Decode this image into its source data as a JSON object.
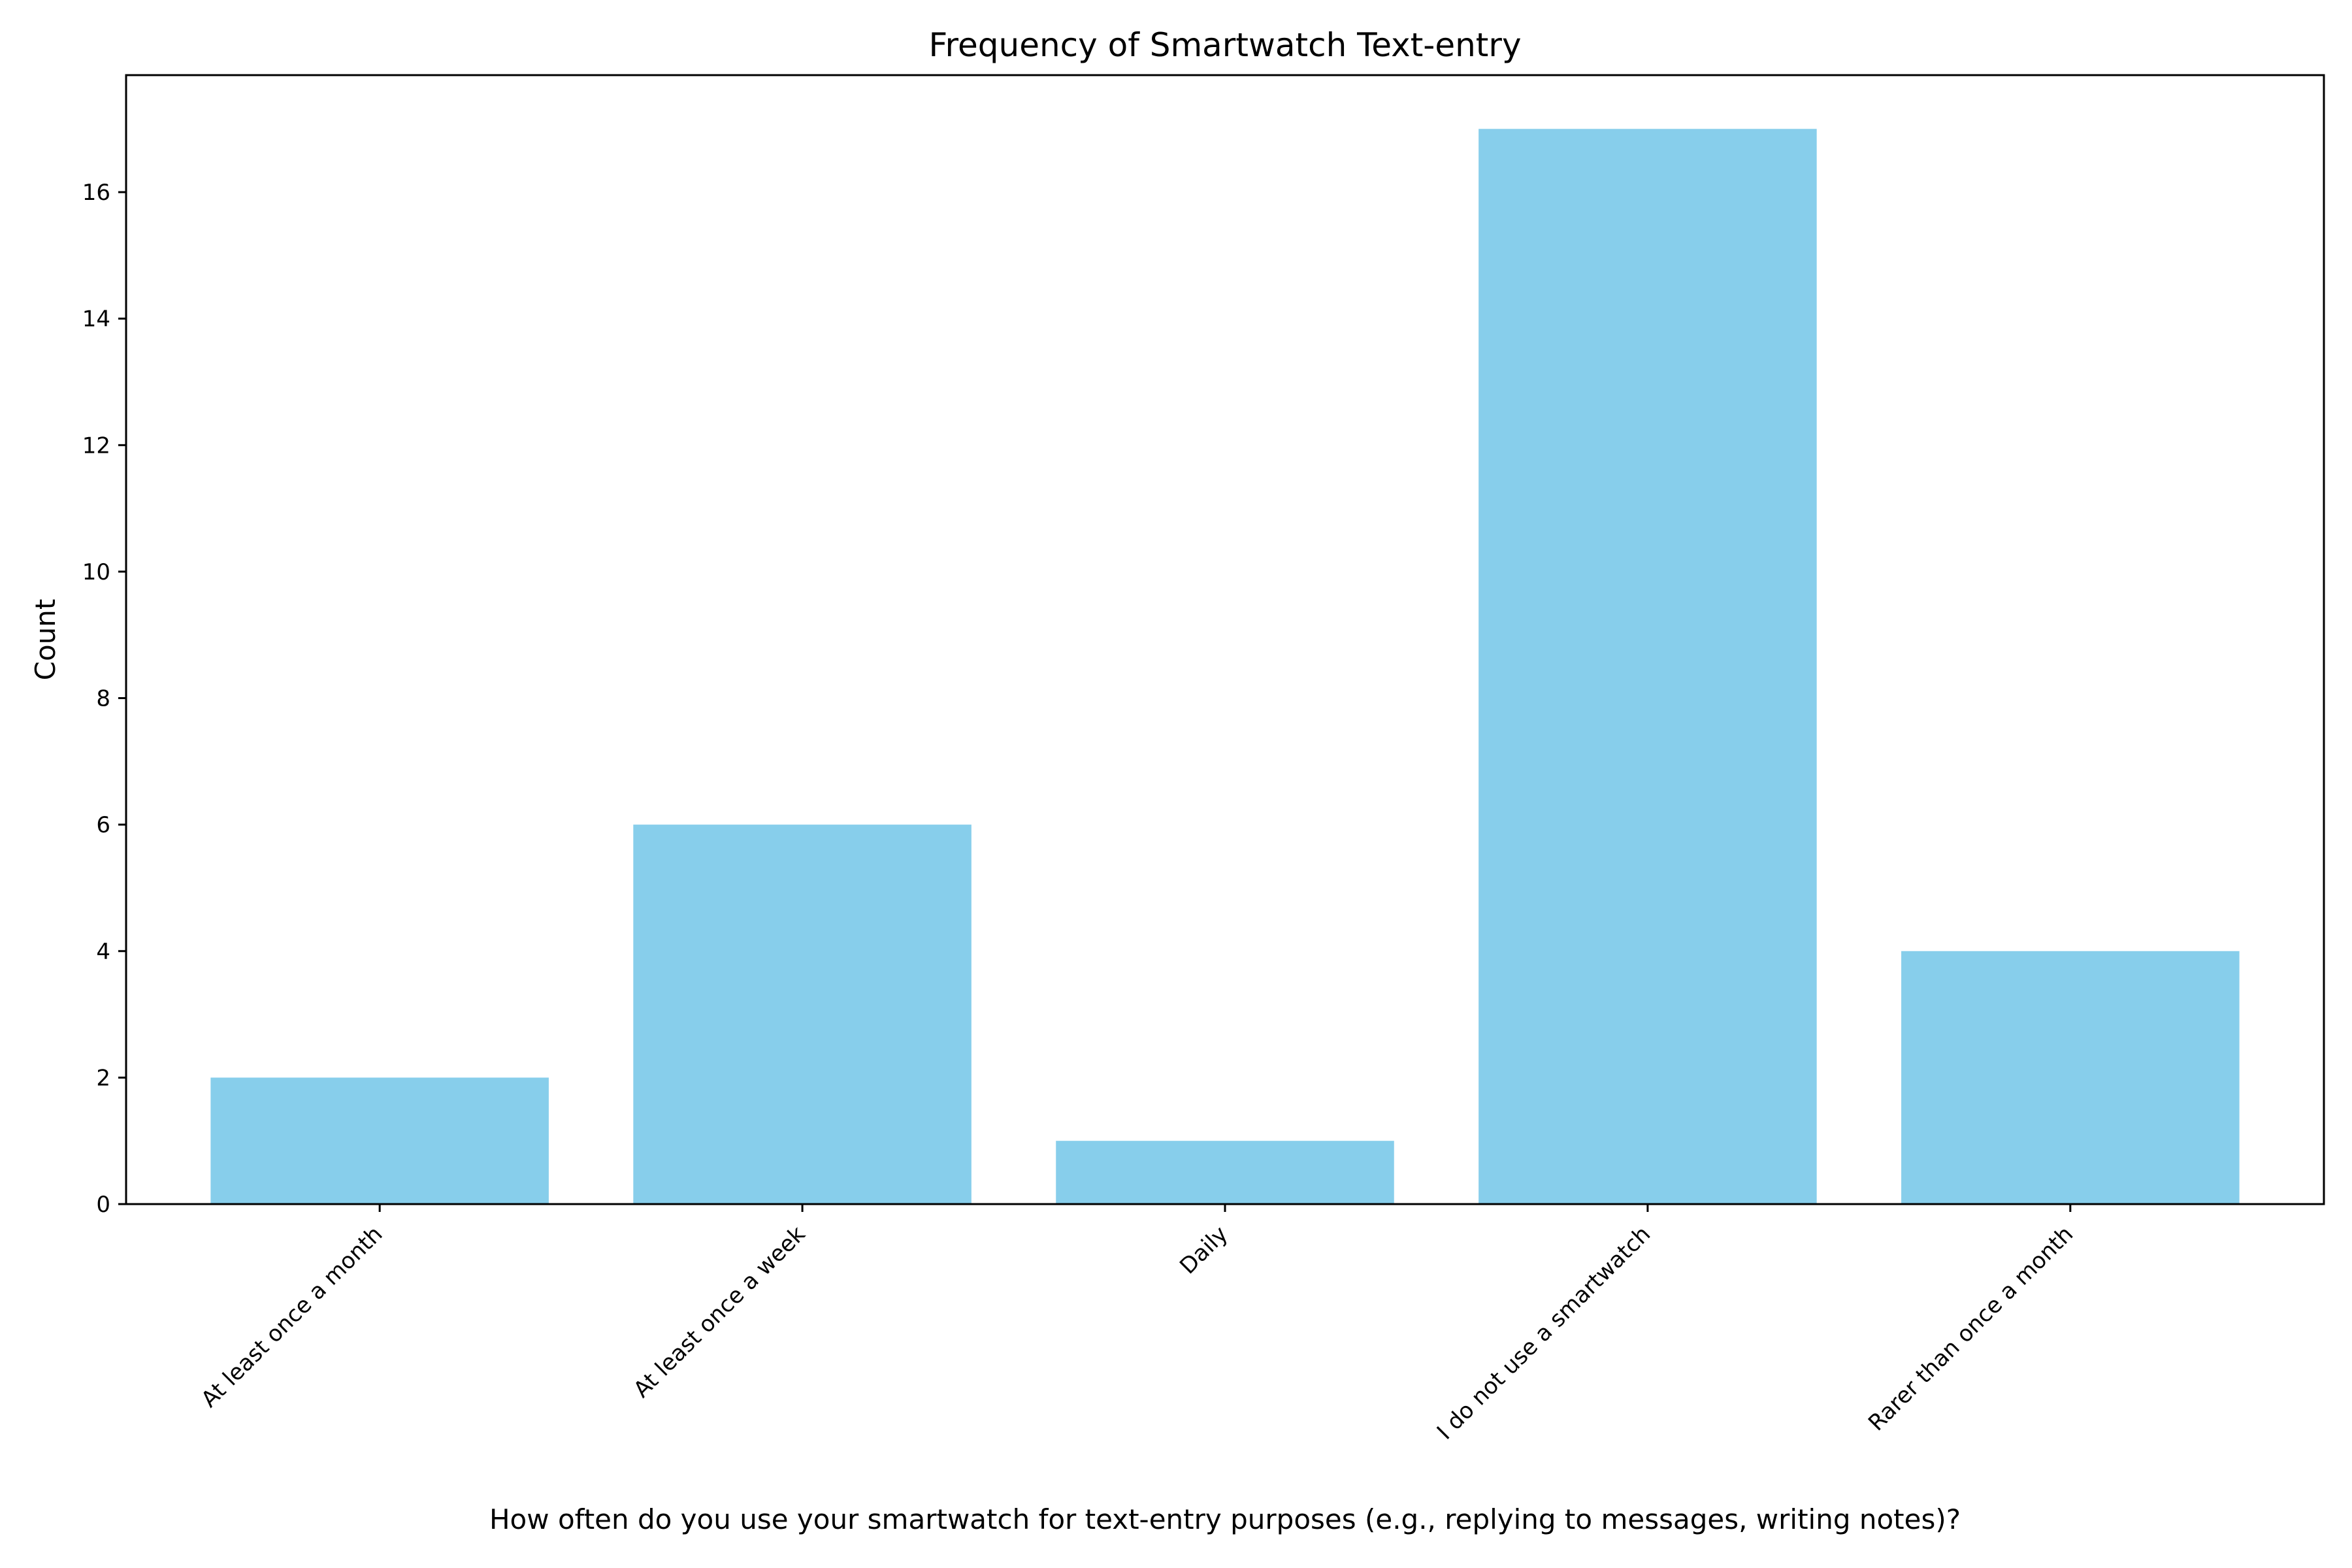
{
  "chart_data": {
    "type": "bar",
    "title": "Frequency of Smartwatch Text-entry",
    "xlabel": "How often do you use your smartwatch for text-entry purposes (e.g., replying to messages, writing notes)?",
    "ylabel": "Count",
    "categories": [
      "At least once a month",
      "At least once a week",
      "Daily",
      "I do not use a smartwatch",
      "Rarer than once a month"
    ],
    "values": [
      2,
      6,
      1,
      17,
      4
    ],
    "ylim": [
      0,
      17.85
    ],
    "yticks": [
      0,
      2,
      4,
      6,
      8,
      10,
      12,
      14,
      16
    ],
    "bar_color": "#87CEEB",
    "grid": false,
    "legend": false
  }
}
